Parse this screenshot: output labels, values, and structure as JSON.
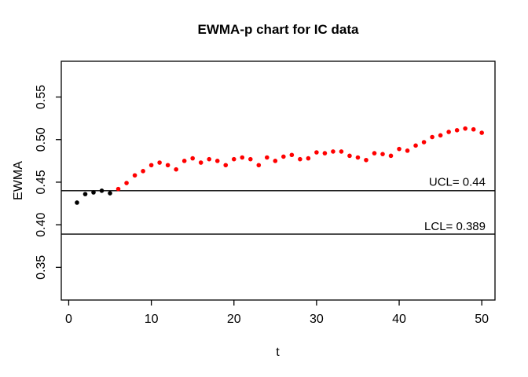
{
  "window": {
    "background": "#ffffff",
    "frame_color": "#000000"
  },
  "chart_data": {
    "type": "scatter",
    "title": "EWMA-p chart for IC data",
    "xlabel": "t",
    "ylabel": "EWMA",
    "grid": false,
    "legend": false,
    "xlim": [
      -0.9,
      51.6
    ],
    "ylim": [
      0.3116,
      0.592
    ],
    "x_ticks": [
      0,
      10,
      20,
      30,
      40,
      50
    ],
    "y_ticks": [
      {
        "value": 0.35,
        "label": "0.35"
      },
      {
        "value": 0.4,
        "label": "0.40"
      },
      {
        "value": 0.45,
        "label": "0.45"
      },
      {
        "value": 0.5,
        "label": "0.50"
      },
      {
        "value": 0.55,
        "label": "0.55"
      }
    ],
    "control_limits": {
      "ucl": {
        "value": 0.44,
        "label": "UCL= 0.44"
      },
      "lcl": {
        "value": 0.389,
        "label": "LCL= 0.389"
      }
    },
    "series": [
      {
        "name": "in-control-points",
        "color": "#000000",
        "t": [
          1,
          2,
          3,
          4,
          5
        ],
        "y": [
          0.426,
          0.436,
          0.438,
          0.44,
          0.437
        ]
      },
      {
        "name": "beyond-limit-points",
        "color": "#ff0000",
        "t": [
          6,
          7,
          8,
          9,
          10,
          11,
          12,
          13,
          14,
          15,
          16,
          17,
          18,
          19,
          20,
          21,
          22,
          23,
          24,
          25,
          26,
          27,
          28,
          29,
          30,
          31,
          32,
          33,
          34,
          35,
          36,
          37,
          38,
          39,
          40,
          41,
          42,
          43,
          44,
          45,
          46,
          47,
          48,
          49,
          50
        ],
        "y": [
          0.442,
          0.449,
          0.458,
          0.463,
          0.47,
          0.473,
          0.47,
          0.465,
          0.475,
          0.478,
          0.473,
          0.477,
          0.475,
          0.47,
          0.477,
          0.479,
          0.477,
          0.47,
          0.479,
          0.475,
          0.48,
          0.482,
          0.477,
          0.478,
          0.485,
          0.484,
          0.486,
          0.486,
          0.481,
          0.479,
          0.476,
          0.484,
          0.483,
          0.481,
          0.489,
          0.487,
          0.493,
          0.497,
          0.503,
          0.505,
          0.509,
          0.511,
          0.513,
          0.512,
          0.508
        ]
      }
    ]
  }
}
